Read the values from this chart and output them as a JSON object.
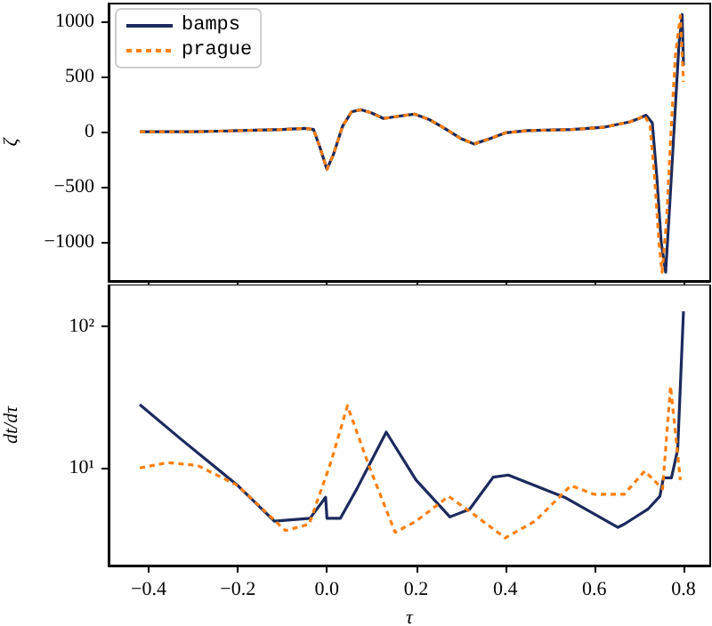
{
  "chart_data": [
    {
      "type": "line",
      "ylabel": "ζ",
      "xlim": [
        -0.49,
        0.86
      ],
      "xticks": [
        {
          "value": -0.4,
          "label": null
        },
        {
          "value": -0.2,
          "label": null
        },
        {
          "value": 0.0,
          "label": null
        },
        {
          "value": 0.2,
          "label": null
        },
        {
          "value": 0.4,
          "label": null
        },
        {
          "value": 0.6,
          "label": null
        },
        {
          "value": 0.8,
          "label": null
        }
      ],
      "ylim": [
        -1350,
        1160
      ],
      "yticks": [
        {
          "value": -1000,
          "label": "−1000"
        },
        {
          "value": -500,
          "label": "−500"
        },
        0,
        500,
        1000
      ],
      "tick_labels": "y",
      "legend": "top left",
      "grid": false,
      "series": [
        {
          "name": "bamps",
          "color": "#1b2a5e",
          "line_style": "solid",
          "x": [
            -0.42,
            -0.3,
            -0.2,
            -0.1,
            -0.05,
            -0.03,
            -0.015,
            0.0,
            0.015,
            0.035,
            0.055,
            0.076,
            0.1,
            0.127,
            0.16,
            0.196,
            0.23,
            0.26,
            0.3,
            0.33,
            0.36,
            0.4,
            0.45,
            0.55,
            0.62,
            0.68,
            0.7,
            0.716,
            0.73,
            0.74,
            0.75,
            0.76,
            0.77,
            0.78,
            0.79,
            0.797,
            0.8
          ],
          "values": [
            0,
            0,
            10,
            20,
            30,
            20,
            -150,
            -340,
            -200,
            50,
            180,
            200,
            170,
            120,
            140,
            160,
            110,
            40,
            -60,
            -110,
            -70,
            -10,
            10,
            20,
            40,
            90,
            120,
            150,
            80,
            -400,
            -1000,
            -1270,
            -600,
            100,
            800,
            1060,
            600
          ]
        },
        {
          "name": "prague",
          "color": "#ff7f0e",
          "line_style": "dashed",
          "x": [
            -0.42,
            -0.3,
            -0.2,
            -0.1,
            -0.05,
            -0.03,
            -0.015,
            0.0,
            0.015,
            0.035,
            0.055,
            0.076,
            0.1,
            0.127,
            0.16,
            0.196,
            0.23,
            0.26,
            0.3,
            0.33,
            0.36,
            0.4,
            0.45,
            0.55,
            0.62,
            0.68,
            0.7,
            0.712,
            0.725,
            0.735,
            0.745,
            0.752,
            0.762,
            0.772,
            0.782,
            0.793,
            0.8
          ],
          "values": [
            0,
            0,
            10,
            20,
            30,
            20,
            -150,
            -340,
            -200,
            50,
            180,
            200,
            170,
            120,
            140,
            160,
            110,
            40,
            -60,
            -110,
            -70,
            -10,
            10,
            20,
            40,
            90,
            120,
            150,
            60,
            -400,
            -1000,
            -1270,
            -800,
            0,
            700,
            1050,
            450
          ]
        }
      ]
    },
    {
      "type": "line",
      "xlabel": "τ",
      "ylabel": "dt/dτ",
      "xlim": [
        -0.49,
        0.86
      ],
      "xticks": [
        {
          "value": -0.4,
          "label": "−0.4"
        },
        {
          "value": -0.2,
          "label": "−0.2"
        },
        {
          "value": 0.0,
          "label": "0.0"
        },
        {
          "value": 0.2,
          "label": "0.2"
        },
        {
          "value": 0.4,
          "label": "0.4"
        },
        {
          "value": 0.6,
          "label": "0.6"
        },
        {
          "value": 0.8,
          "label": "0.8"
        }
      ],
      "ylim": [
        2.04,
        198
      ],
      "yticks": [
        {
          "value": 10,
          "label": "10¹"
        },
        {
          "value": 100,
          "label": "10²"
        }
      ],
      "log": "y",
      "grid": false,
      "series": [
        {
          "color": "#1b2a5e",
          "line_style": "solid",
          "x": [
            -0.42,
            -0.33,
            -0.2,
            -0.118,
            -0.038,
            -0.003,
            0.0,
            0.03,
            0.067,
            0.133,
            0.2,
            0.276,
            0.32,
            0.373,
            0.407,
            0.533,
            0.653,
            0.667,
            0.72,
            0.747,
            0.755,
            0.773,
            0.787,
            0.8
          ],
          "values": [
            28,
            16.2,
            7.5,
            4.2,
            4.4,
            6.2,
            4.4,
            4.4,
            7.1,
            17.9,
            8.2,
            4.5,
            5.1,
            8.6,
            8.9,
            6.2,
            3.8,
            4.0,
            5.1,
            6.3,
            8.5,
            8.5,
            13.5,
            128
          ]
        },
        {
          "color": "#ff7f0e",
          "line_style": "dashed",
          "x": [
            -0.42,
            -0.357,
            -0.29,
            -0.2,
            -0.093,
            -0.04,
            0.009,
            0.046,
            0.096,
            0.153,
            0.2,
            0.273,
            0.333,
            0.4,
            0.467,
            0.547,
            0.6,
            0.667,
            0.713,
            0.753,
            0.771,
            0.793
          ],
          "values": [
            10,
            10.9,
            10.4,
            7.5,
            3.6,
            4.0,
            11,
            27.5,
            10,
            3.5,
            4.2,
            6.3,
            4.6,
            3.2,
            4.2,
            7.5,
            6.5,
            6.5,
            9.5,
            7.1,
            37.9,
            8.2
          ]
        }
      ]
    }
  ]
}
